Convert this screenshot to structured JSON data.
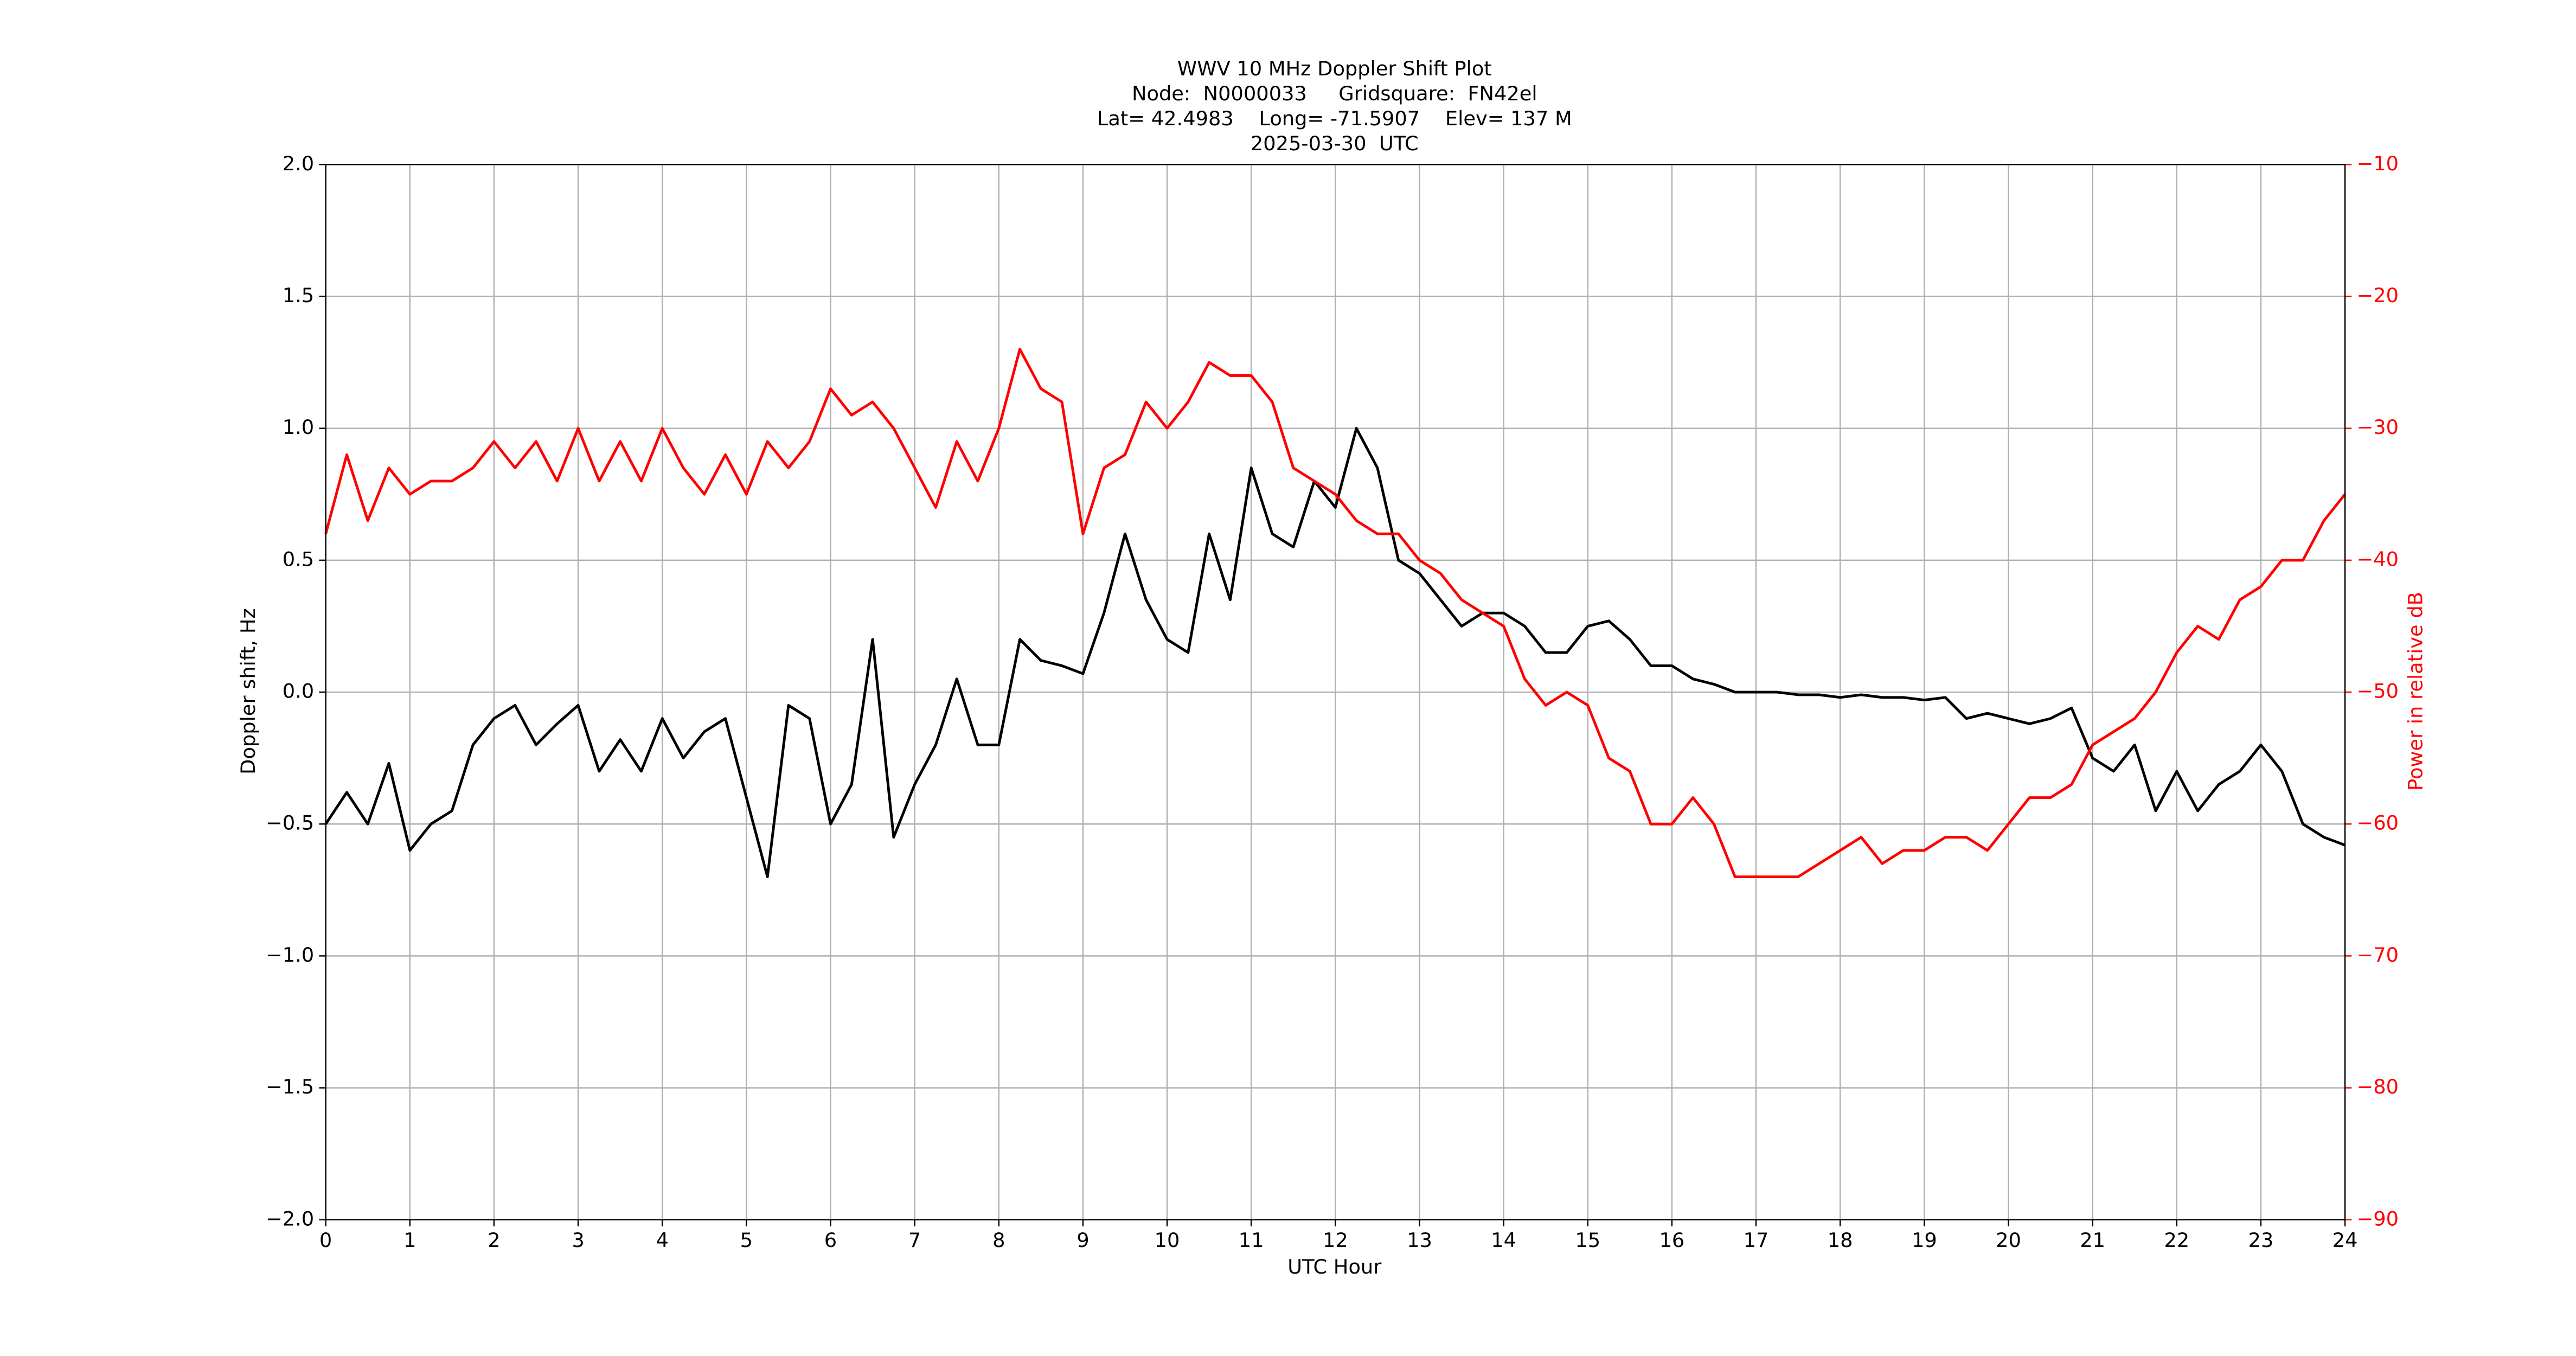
{
  "chart_data": {
    "type": "line",
    "title": [
      "WWV 10 MHz Doppler Shift Plot",
      "Node:  N0000033     Gridsquare:  FN42el",
      "Lat= 42.4983    Long= -71.5907    Elev= 137 M",
      "2025-03-30  UTC"
    ],
    "x_label": "UTC Hour",
    "y_label": "Doppler shift, Hz",
    "y2_label": "Power in relative dB",
    "grid": true,
    "xlim": [
      0,
      24
    ],
    "xticks": [
      0,
      1,
      2,
      3,
      4,
      5,
      6,
      7,
      8,
      9,
      10,
      11,
      12,
      13,
      14,
      15,
      16,
      17,
      18,
      19,
      20,
      21,
      22,
      23,
      24
    ],
    "ylim": [
      -2,
      2
    ],
    "yticks": [
      {
        "value": -2,
        "label": "−2.0"
      },
      {
        "value": -1.5,
        "label": "−1.5"
      },
      {
        "value": -1,
        "label": "−1.0"
      },
      {
        "value": -0.5,
        "label": "−0.5"
      },
      {
        "value": 0,
        "label": "0.0"
      },
      {
        "value": 0.5,
        "label": "0.5"
      },
      {
        "value": 1,
        "label": "1.0"
      },
      {
        "value": 1.5,
        "label": "1.5"
      },
      {
        "value": 2,
        "label": "2.0"
      }
    ],
    "y2lim": [
      -90,
      -10
    ],
    "y2ticks": [
      {
        "value": -90,
        "label": "−90"
      },
      {
        "value": -80,
        "label": "−80"
      },
      {
        "value": -70,
        "label": "−70"
      },
      {
        "value": -60,
        "label": "−60"
      },
      {
        "value": -50,
        "label": "−50"
      },
      {
        "value": -40,
        "label": "−40"
      },
      {
        "value": -30,
        "label": "−30"
      },
      {
        "value": -20,
        "label": "−20"
      },
      {
        "value": -10,
        "label": "−10"
      }
    ],
    "y2_color": "#ff0000",
    "x": [
      0,
      0.25,
      0.5,
      0.75,
      1,
      1.25,
      1.5,
      1.75,
      2,
      2.25,
      2.5,
      2.75,
      3,
      3.25,
      3.5,
      3.75,
      4,
      4.25,
      4.5,
      4.75,
      5,
      5.25,
      5.5,
      5.75,
      6,
      6.25,
      6.5,
      6.75,
      7,
      7.25,
      7.5,
      7.75,
      8,
      8.25,
      8.5,
      8.75,
      9,
      9.25,
      9.5,
      9.75,
      10,
      10.25,
      10.5,
      10.75,
      11,
      11.25,
      11.5,
      11.75,
      12,
      12.25,
      12.5,
      12.75,
      13,
      13.25,
      13.5,
      13.75,
      14,
      14.25,
      14.5,
      14.75,
      15,
      15.25,
      15.5,
      15.75,
      16,
      16.25,
      16.5,
      16.75,
      17,
      17.25,
      17.5,
      17.75,
      18,
      18.25,
      18.5,
      18.75,
      19,
      19.25,
      19.5,
      19.75,
      20,
      20.25,
      20.5,
      20.75,
      21,
      21.25,
      21.5,
      21.75,
      22,
      22.25,
      22.5,
      22.75,
      23,
      23.25,
      23.5,
      23.75,
      24
    ],
    "series": [
      {
        "color": "#000000",
        "axis": "y",
        "values": [
          -0.5,
          -0.38,
          -0.5,
          -0.27,
          -0.6,
          -0.5,
          -0.45,
          -0.2,
          -0.1,
          -0.05,
          -0.2,
          -0.12,
          -0.05,
          -0.3,
          -0.18,
          -0.3,
          -0.1,
          -0.25,
          -0.15,
          -0.1,
          -0.4,
          -0.7,
          -0.05,
          -0.1,
          -0.5,
          -0.35,
          0.2,
          -0.55,
          -0.35,
          -0.2,
          0.05,
          -0.2,
          -0.2,
          0.2,
          0.12,
          0.1,
          0.07,
          0.3,
          0.6,
          0.35,
          0.2,
          0.15,
          0.6,
          0.35,
          0.85,
          0.6,
          0.55,
          0.8,
          0.7,
          1.0,
          0.85,
          0.5,
          0.45,
          0.35,
          0.25,
          0.3,
          0.3,
          0.25,
          0.15,
          0.15,
          0.25,
          0.27,
          0.2,
          0.1,
          0.1,
          0.05,
          0.03,
          0.0,
          0.0,
          0.0,
          -0.01,
          -0.01,
          -0.02,
          -0.01,
          -0.02,
          -0.02,
          -0.03,
          -0.02,
          -0.1,
          -0.08,
          -0.1,
          -0.12,
          -0.1,
          -0.06,
          -0.25,
          -0.3,
          -0.2,
          -0.45,
          -0.3,
          -0.45,
          -0.35,
          -0.3,
          -0.2,
          -0.3,
          -0.5,
          -0.55,
          -0.58
        ]
      },
      {
        "color": "#ff0000",
        "axis": "y2",
        "values": [
          -38,
          -32,
          -37,
          -33,
          -35,
          -34,
          -34,
          -33,
          -31,
          -33,
          -31,
          -34,
          -30,
          -34,
          -31,
          -34,
          -30,
          -33,
          -35,
          -32,
          -35,
          -31,
          -33,
          -31,
          -27,
          -29,
          -28,
          -30,
          -33,
          -36,
          -31,
          -34,
          -30,
          -24,
          -27,
          -28,
          -38,
          -33,
          -32,
          -28,
          -30,
          -28,
          -25,
          -26,
          -26,
          -28,
          -33,
          -34,
          -35,
          -37,
          -38,
          -38,
          -40,
          -41,
          -43,
          -44,
          -45,
          -49,
          -51,
          -50,
          -51,
          -55,
          -56,
          -60,
          -60,
          -58,
          -60,
          -64,
          -64,
          -64,
          -64,
          -63,
          -62,
          -61,
          -63,
          -62,
          -62,
          -61,
          -61,
          -62,
          -60,
          -58,
          -58,
          -57,
          -54,
          -53,
          -52,
          -50,
          -47,
          -45,
          -46,
          -43,
          -42,
          -40,
          -40,
          -37,
          -35
        ]
      }
    ]
  }
}
